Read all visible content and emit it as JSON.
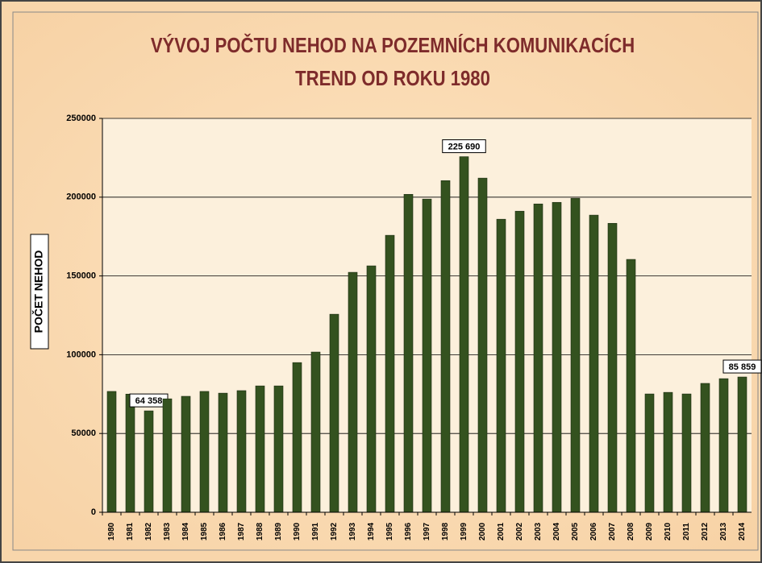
{
  "chart_data": {
    "type": "bar",
    "title": "VÝVOJ POČTU  NEHOD NA POZEMNÍCH KOMUNIKACÍCH",
    "subtitle": "TREND OD ROKU 1980",
    "y_label": "POČET NEHOD",
    "categories": [
      "1980",
      "1981",
      "1982",
      "1983",
      "1984",
      "1985",
      "1986",
      "1987",
      "1988",
      "1989",
      "1990",
      "1991",
      "1992",
      "1993",
      "1994",
      "1995",
      "1996",
      "1997",
      "1998",
      "1999",
      "2000",
      "2001",
      "2002",
      "2003",
      "2004",
      "2005",
      "2006",
      "2007",
      "2008",
      "2009",
      "2010",
      "2011",
      "2012",
      "2013",
      "2014"
    ],
    "values": [
      76700,
      75000,
      64358,
      72000,
      73600,
      76700,
      75600,
      77200,
      80200,
      80200,
      95000,
      101700,
      125700,
      152300,
      156400,
      175800,
      201800,
      198800,
      210500,
      225690,
      212100,
      186000,
      191100,
      195700,
      196700,
      199300,
      188600,
      183400,
      160500,
      75100,
      76100,
      75100,
      81800,
      84800,
      85859
    ],
    "value_labels": [
      null,
      null,
      "64 358",
      null,
      null,
      null,
      null,
      null,
      null,
      null,
      null,
      null,
      null,
      null,
      null,
      null,
      null,
      null,
      null,
      "225 690",
      null,
      null,
      null,
      null,
      null,
      null,
      null,
      null,
      null,
      null,
      null,
      null,
      null,
      null,
      "85 859"
    ],
    "color": "#34521f",
    "ylim": [
      0,
      250000
    ],
    "yticks": [
      0,
      50000,
      100000,
      150000,
      200000,
      250000
    ],
    "grid": true
  }
}
